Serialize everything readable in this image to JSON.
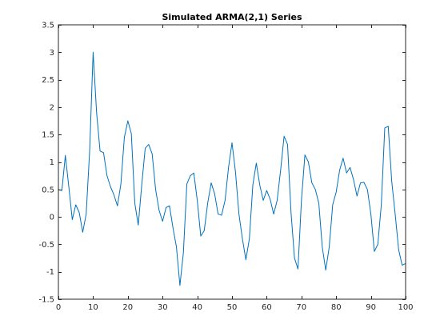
{
  "chart_data": {
    "type": "line",
    "title": "Simulated ARMA(2,1) Series",
    "xlabel": "",
    "ylabel": "",
    "xlim": [
      0,
      100
    ],
    "ylim": [
      -1.5,
      3.5
    ],
    "x_ticks": [
      0,
      10,
      20,
      30,
      40,
      50,
      60,
      70,
      80,
      90,
      100
    ],
    "y_ticks": [
      -1.5,
      -1,
      -0.5,
      0,
      0.5,
      1,
      1.5,
      2,
      2.5,
      3,
      3.5
    ],
    "x_tick_labels": [
      "0",
      "10",
      "20",
      "30",
      "40",
      "50",
      "60",
      "70",
      "80",
      "90",
      "100"
    ],
    "y_tick_labels": [
      "-1.5",
      "-1",
      "-0.5",
      "0",
      "0.5",
      "1",
      "1.5",
      "2",
      "2.5",
      "3",
      "3.5"
    ],
    "grid": false,
    "box": true,
    "line_color": "#0072BD",
    "series": [
      {
        "x": [
          0,
          1,
          2,
          3,
          4,
          5,
          6,
          7,
          8,
          9,
          10,
          11,
          12,
          13,
          14,
          15,
          16,
          17,
          18,
          19,
          20,
          21,
          22,
          23,
          24,
          25,
          26,
          27,
          28,
          29,
          30,
          31,
          32,
          33,
          34,
          35,
          36,
          37,
          38,
          39,
          40,
          41,
          42,
          43,
          44,
          45,
          46,
          47,
          48,
          49,
          50,
          51,
          52,
          53,
          54,
          55,
          56,
          57,
          58,
          59,
          60,
          61,
          62,
          63,
          64,
          65,
          66,
          67,
          68,
          69,
          70,
          71,
          72,
          73,
          74,
          75,
          76,
          77,
          78,
          79,
          80,
          81,
          82,
          83,
          84,
          85,
          86,
          87,
          88,
          89,
          90,
          91,
          92,
          93,
          94,
          95,
          96,
          97,
          98,
          99,
          100
        ],
        "values": [
          0.5,
          0.48,
          1.12,
          0.55,
          -0.05,
          0.22,
          0.08,
          -0.28,
          0.05,
          1.2,
          3.0,
          1.9,
          1.2,
          1.17,
          0.75,
          0.55,
          0.4,
          0.2,
          0.6,
          1.45,
          1.75,
          1.52,
          0.25,
          -0.15,
          0.58,
          1.25,
          1.32,
          1.15,
          0.5,
          0.12,
          -0.08,
          0.17,
          0.2,
          -0.2,
          -0.55,
          -1.25,
          -0.65,
          0.6,
          0.75,
          0.8,
          0.3,
          -0.35,
          -0.25,
          0.25,
          0.62,
          0.42,
          0.05,
          0.03,
          0.3,
          0.9,
          1.35,
          0.82,
          0.05,
          -0.4,
          -0.78,
          -0.4,
          0.58,
          0.98,
          0.58,
          0.3,
          0.48,
          0.32,
          0.05,
          0.3,
          0.85,
          1.47,
          1.32,
          0.08,
          -0.75,
          -0.95,
          0.3,
          1.13,
          1.0,
          0.62,
          0.5,
          0.25,
          -0.55,
          -0.97,
          -0.55,
          0.22,
          0.45,
          0.85,
          1.07,
          0.8,
          0.9,
          0.68,
          0.38,
          0.62,
          0.63,
          0.5,
          0.05,
          -0.63,
          -0.5,
          0.22,
          1.62,
          1.65,
          0.65,
          0.05,
          -0.6,
          -0.88,
          -0.85
        ]
      }
    ]
  }
}
